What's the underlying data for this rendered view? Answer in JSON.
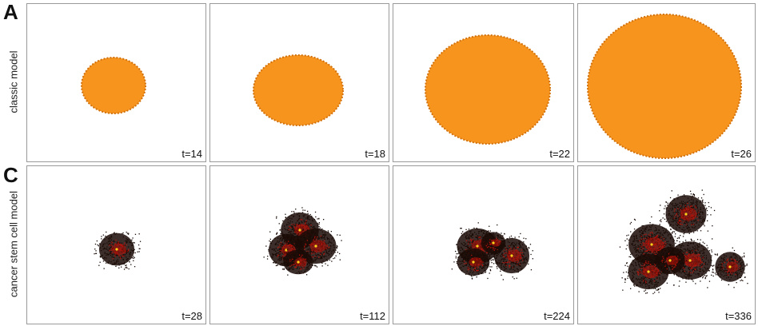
{
  "figure": {
    "panels": [
      {
        "letter": "A",
        "row_label": "classic model",
        "frames": [
          {
            "time_label": "t=14"
          },
          {
            "time_label": "t=18"
          },
          {
            "time_label": "t=22"
          },
          {
            "time_label": "t=26"
          }
        ]
      },
      {
        "letter": "C",
        "row_label": "cancer stem cell model",
        "frames": [
          {
            "time_label": "t=28"
          },
          {
            "time_label": "t=112"
          },
          {
            "time_label": "t=224"
          },
          {
            "time_label": "t=336"
          }
        ]
      }
    ],
    "colors": {
      "tumor_fill": "#f7941d",
      "tumor_edge": "#d2700a",
      "cell_dark": "#1a0a06",
      "cell_red": "#b3120a",
      "cell_yellow": "#ffd21a",
      "frame_border": "#9a9a9a"
    }
  }
}
